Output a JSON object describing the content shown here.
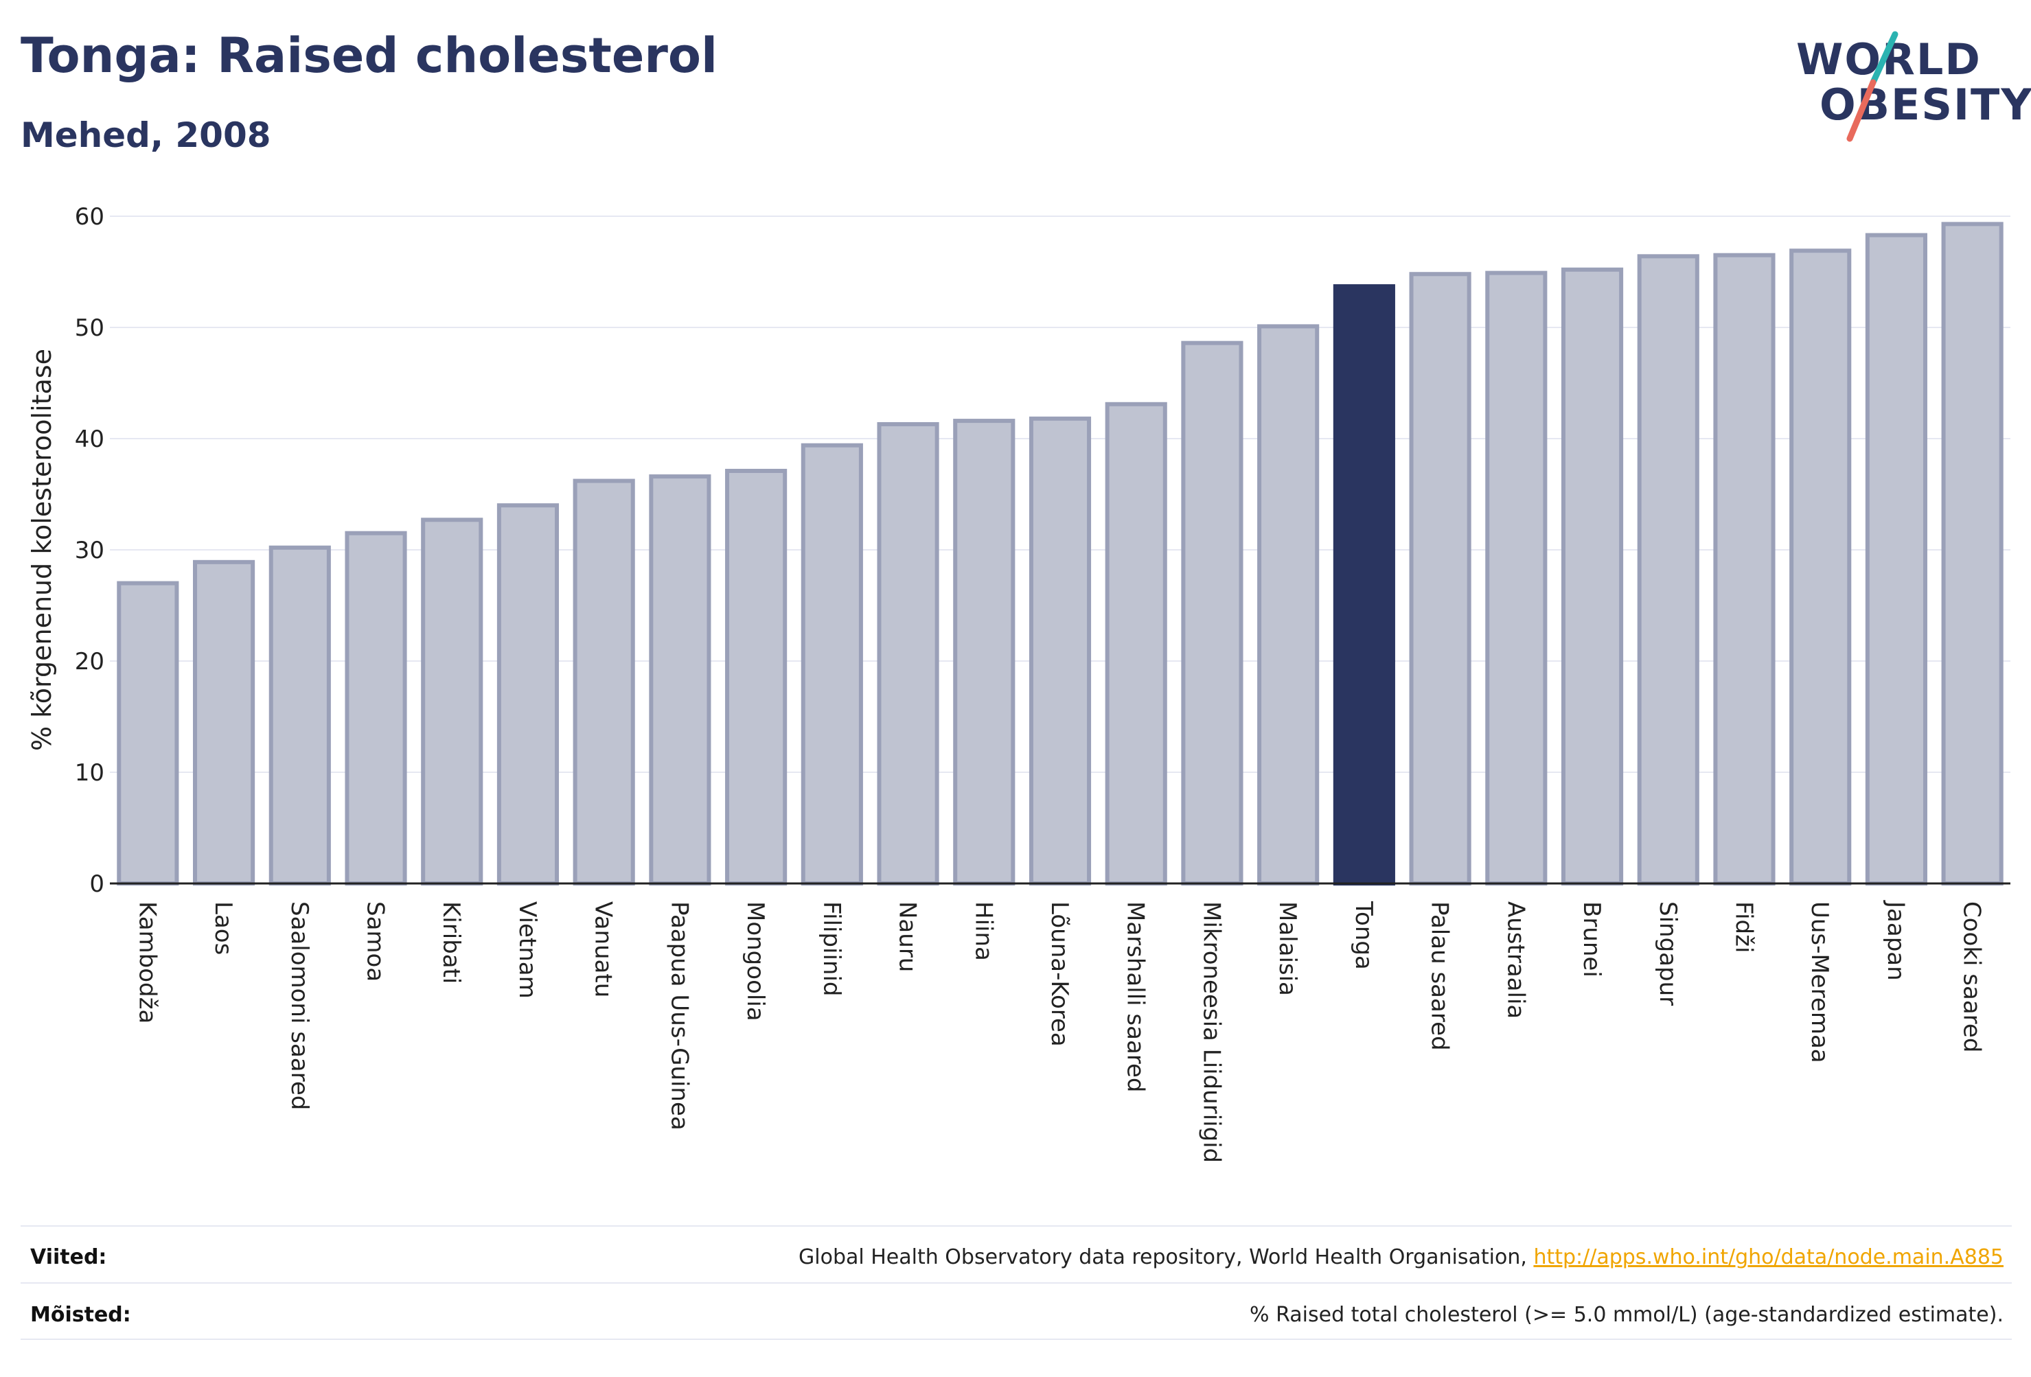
{
  "header": {
    "title": "Tonga: Raised cholesterol",
    "subtitle": "Mehed, 2008"
  },
  "logo": {
    "line1": "WORLD",
    "line2": "OBESITY"
  },
  "footer": {
    "sources_label": "Viited:",
    "sources_text": "Global Health Observatory data repository, World Health Organisation, ",
    "sources_link": "http://apps.who.int/gho/data/node.main.A885",
    "definitions_label": "Mõisted:",
    "definitions_text": "% Raised total cholesterol (>= 5.0 mmol/L) (age-standardized estimate)."
  },
  "colors": {
    "highlight": "#2a3560",
    "bar_fill": "#bfc3d1",
    "bar_stroke": "#9aa0b8",
    "grid": "#e6e8f2",
    "link": "#f0a500",
    "logo_teal": "#2bb3b1",
    "logo_coral": "#e86a5c"
  },
  "chart_data": {
    "type": "bar",
    "title": "Tonga: Raised cholesterol",
    "subtitle": "Mehed, 2008",
    "xlabel": "",
    "ylabel": "% kõrgenenud kolesteroolitase",
    "ylim": [
      0,
      60
    ],
    "yticks": [
      0,
      10,
      20,
      30,
      40,
      50,
      60
    ],
    "grid": true,
    "highlight_category": "Tonga",
    "categories": [
      "Kambodža",
      "Laos",
      "Saalomoni saared",
      "Samoa",
      "Kiribati",
      "Vietnam",
      "Vanuatu",
      "Paapua Uus-Guinea",
      "Mongoolia",
      "Filipiinid",
      "Nauru",
      "Hiina",
      "Lõuna-Korea",
      "Marshalli saared",
      "Mikroneesia Liiduriigid",
      "Malaisia",
      "Tonga",
      "Palau saared",
      "Austraalia",
      "Brunei",
      "Singapur",
      "Fidži",
      "Uus-Meremaa",
      "Jaapan",
      "Cooki saared"
    ],
    "values": [
      27.0,
      28.9,
      30.2,
      31.5,
      32.7,
      34.0,
      36.2,
      36.6,
      37.1,
      39.4,
      41.3,
      41.6,
      41.8,
      43.1,
      48.6,
      50.1,
      53.7,
      54.8,
      54.9,
      55.2,
      56.4,
      56.5,
      56.9,
      58.3,
      59.3
    ]
  }
}
